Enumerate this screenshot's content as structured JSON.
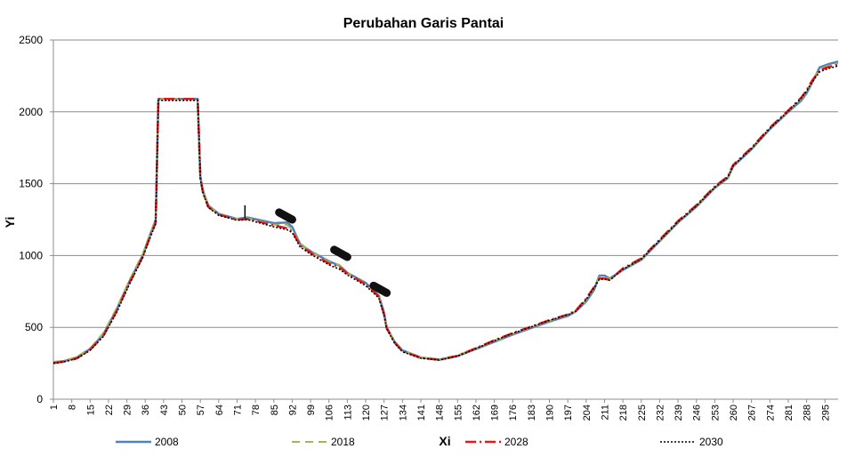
{
  "chart_data": {
    "type": "line",
    "title": "Perubahan Garis Pantai",
    "xlabel": "Xi",
    "ylabel": "Yi",
    "xlim": [
      1,
      300
    ],
    "ylim": [
      0,
      2500
    ],
    "yticks": [
      0,
      500,
      1000,
      1500,
      2000,
      2500
    ],
    "xticks": [
      1,
      8,
      15,
      22,
      29,
      36,
      43,
      50,
      57,
      64,
      71,
      78,
      85,
      92,
      99,
      106,
      113,
      120,
      127,
      134,
      141,
      148,
      155,
      162,
      169,
      176,
      183,
      190,
      197,
      204,
      211,
      218,
      225,
      232,
      239,
      246,
      253,
      260,
      267,
      274,
      281,
      288,
      295
    ],
    "grid": "horizontal",
    "legend_position": "bottom",
    "colors": {
      "2008": "#4f81bd",
      "2018": "#9bbb59",
      "2028": "#e31a1c",
      "2030": "#000000",
      "structure": "#111111"
    },
    "x": [
      1,
      5,
      10,
      15,
      20,
      25,
      30,
      35,
      38,
      40,
      41,
      48,
      56,
      57,
      58,
      60,
      64,
      71,
      75,
      85,
      90,
      92,
      95,
      99,
      106,
      110,
      113,
      120,
      125,
      127,
      128,
      131,
      134,
      141,
      148,
      155,
      162,
      169,
      176,
      183,
      190,
      197,
      200,
      204,
      207,
      209,
      211,
      213,
      218,
      225,
      232,
      239,
      246,
      253,
      258,
      260,
      267,
      274,
      281,
      286,
      288,
      290,
      293,
      296,
      300
    ],
    "series": [
      {
        "name": "2008",
        "values": [
          255,
          265,
          290,
          350,
          450,
          620,
          820,
          1000,
          1150,
          1250,
          2090,
          2090,
          2090,
          1550,
          1450,
          1350,
          1290,
          1255,
          1265,
          1225,
          1230,
          1200,
          1080,
          1030,
          960,
          930,
          880,
          810,
          720,
          600,
          500,
          400,
          340,
          290,
          275,
          300,
          350,
          400,
          450,
          495,
          540,
          580,
          610,
          680,
          760,
          860,
          860,
          840,
          900,
          970,
          1100,
          1230,
          1340,
          1470,
          1540,
          1620,
          1740,
          1880,
          2000,
          2080,
          2130,
          2200,
          2310,
          2330,
          2350
        ]
      },
      {
        "name": "2018",
        "values": [
          260,
          268,
          295,
          355,
          460,
          630,
          830,
          1010,
          1160,
          1240,
          2090,
          2090,
          2090,
          1560,
          1460,
          1350,
          1290,
          1255,
          1260,
          1215,
          1215,
          1180,
          1085,
          1030,
          955,
          935,
          880,
          805,
          720,
          595,
          500,
          400,
          340,
          292,
          278,
          305,
          355,
          405,
          455,
          500,
          545,
          585,
          612,
          690,
          770,
          850,
          850,
          835,
          905,
          975,
          1105,
          1235,
          1345,
          1475,
          1545,
          1625,
          1745,
          1885,
          2005,
          2090,
          2140,
          2210,
          2300,
          2320,
          2340
        ]
      },
      {
        "name": "2028",
        "values": [
          252,
          262,
          285,
          345,
          440,
          610,
          810,
          990,
          1140,
          1230,
          2090,
          2090,
          2090,
          1540,
          1440,
          1340,
          1285,
          1250,
          1255,
          1210,
          1190,
          1170,
          1070,
          1020,
          945,
          920,
          875,
          800,
          715,
          590,
          495,
          395,
          335,
          288,
          275,
          302,
          355,
          410,
          460,
          505,
          550,
          590,
          615,
          700,
          780,
          840,
          840,
          830,
          910,
          980,
          1110,
          1240,
          1350,
          1480,
          1550,
          1630,
          1750,
          1890,
          2010,
          2100,
          2150,
          2215,
          2290,
          2310,
          2330
        ]
      },
      {
        "name": "2030",
        "values": [
          250,
          260,
          283,
          340,
          435,
          600,
          800,
          985,
          1130,
          1220,
          2080,
          2080,
          2080,
          1530,
          1435,
          1335,
          1280,
          1245,
          1250,
          1200,
          1180,
          1160,
          1060,
          1010,
          935,
          905,
          865,
          790,
          705,
          580,
          490,
          390,
          330,
          285,
          272,
          300,
          352,
          408,
          458,
          503,
          548,
          588,
          612,
          695,
          775,
          835,
          835,
          828,
          905,
          975,
          1105,
          1235,
          1345,
          1475,
          1545,
          1625,
          1745,
          1885,
          2005,
          2095,
          2145,
          2205,
          2280,
          2300,
          2320
        ]
      }
    ],
    "structures": [
      {
        "x1": 87,
        "y1": 1300,
        "x2": 92,
        "y2": 1250
      },
      {
        "x1": 108,
        "y1": 1040,
        "x2": 113,
        "y2": 990
      },
      {
        "x1": 123,
        "y1": 790,
        "x2": 128,
        "y2": 740
      }
    ],
    "spike": {
      "x": 74,
      "y_low": 1260,
      "y_high": 1350
    }
  }
}
